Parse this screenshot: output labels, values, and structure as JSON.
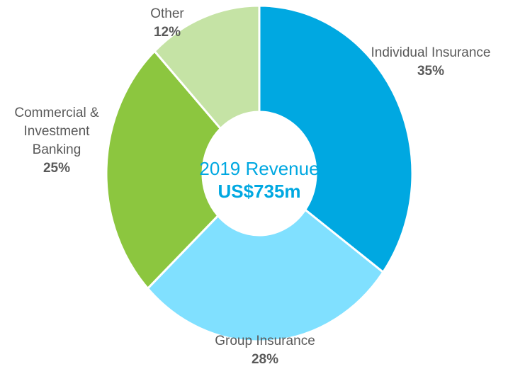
{
  "chart_data": {
    "type": "donut",
    "title": "2019 Revenue",
    "subtitle": "US$735m",
    "categories": [
      "Individual Insurance",
      "Group Insurance",
      "Commercial & Investment Banking",
      "Other"
    ],
    "values": [
      35,
      28,
      25,
      12
    ],
    "value_labels": [
      "35%",
      "28%",
      "25%",
      "12%"
    ],
    "colors": [
      "#00a8e1",
      "#80e0ff",
      "#8cc63f",
      "#c5e3a5"
    ]
  }
}
